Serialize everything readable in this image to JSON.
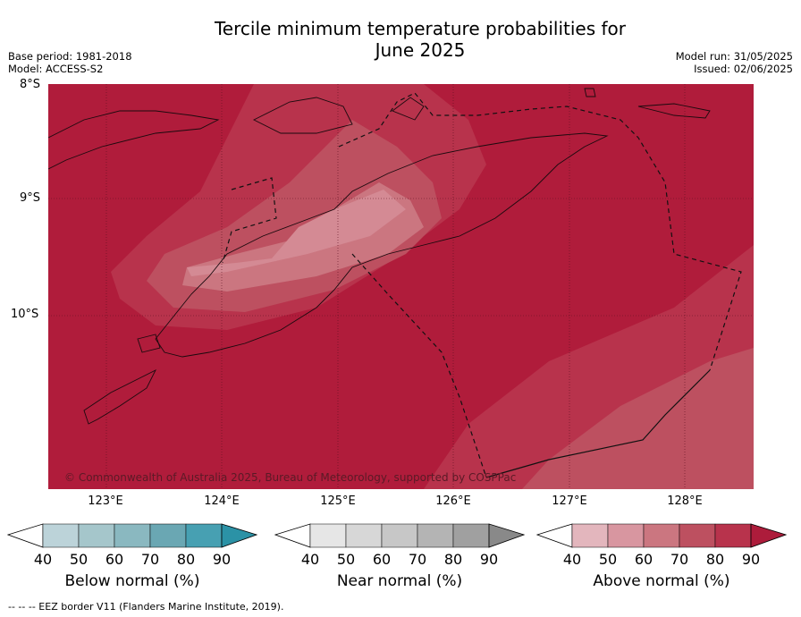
{
  "title_line1": "Tercile minimum temperature probabilities for",
  "title_line2": "June 2025",
  "meta_left": {
    "line1": "Base period: 1981-2018",
    "line2": "Model: ACCESS-S2"
  },
  "meta_right": {
    "line1": "Model run: 31/05/2025",
    "line2": "Issued: 02/06/2025"
  },
  "lat_labels": [
    "8°S",
    "9°S",
    "10°S"
  ],
  "lon_labels": [
    "123°E",
    "124°E",
    "125°E",
    "126°E",
    "127°E",
    "128°E"
  ],
  "copyright": "© Commonwealth of Australia 2025, Bureau of Meteorology, supported by COSPPac",
  "colorbars": [
    {
      "label": "Below normal (%)",
      "ticks": [
        "40",
        "50",
        "60",
        "70",
        "80",
        "90"
      ],
      "colors": [
        "#ffffff",
        "#bcd3d9",
        "#a5c6cb",
        "#8ab8c0",
        "#6aa7b3",
        "#47a0b2",
        "#2b92a6"
      ]
    },
    {
      "label": "Near normal (%)",
      "ticks": [
        "40",
        "50",
        "60",
        "70",
        "80",
        "90"
      ],
      "colors": [
        "#ffffff",
        "#e6e6e6",
        "#d7d7d7",
        "#c7c7c7",
        "#b4b4b4",
        "#a0a0a0",
        "#898989"
      ]
    },
    {
      "label": "Above normal (%)",
      "ticks": [
        "40",
        "50",
        "60",
        "70",
        "80",
        "90"
      ],
      "colors": [
        "#ffffff",
        "#e3b6bd",
        "#d896a0",
        "#cb7680",
        "#bd5060",
        "#b8334c",
        "#ad1c3b"
      ]
    }
  ],
  "footer": "--  --  -- EEZ border V11 (Flanders Marine Institute, 2019).",
  "colors": {
    "category_90": "#b01c3b",
    "category_80": "#b8334c",
    "category_70": "#bd5060",
    "category_60": "#cb7680"
  }
}
